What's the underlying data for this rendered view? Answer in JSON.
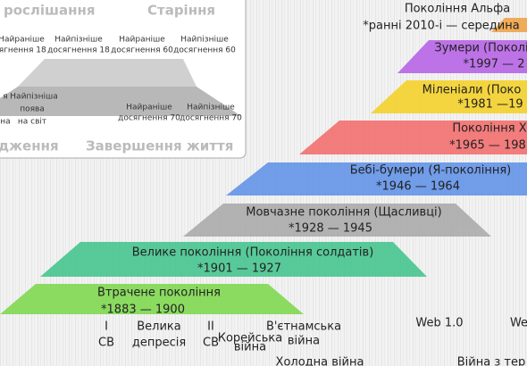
{
  "legend": {
    "stages": [
      "рослішання",
      "Старіння",
      "дження",
      "Завершення життя"
    ],
    "milestones_top": [
      [
        "Найраніше",
        "осягнення 18"
      ],
      [
        "Найпізніше",
        "досягнення 18"
      ],
      [
        "Найраніше",
        "досягнення 60"
      ],
      [
        "Найпізніше",
        "досягнення 60"
      ]
    ],
    "milestones_bottom": [
      [
        "Найпізніша",
        "поява",
        "на світ"
      ],
      [
        "Найраніше",
        "досягнення 70"
      ],
      [
        "Найпізніше",
        "досягнення 70"
      ]
    ],
    "fragments": [
      "я",
      "на"
    ]
  },
  "generations": [
    {
      "name": "Покоління Альфа",
      "years": "*ранні 2010-і — середина"
    },
    {
      "name": "Зумери (Поколі",
      "years": "*1997 — 2"
    },
    {
      "name": "Міленіали (Поко",
      "years": "*1981 —19"
    },
    {
      "name": "Покоління Х",
      "years": "*1965 — 198"
    },
    {
      "name": "Бебі-бумери (Я-покоління)",
      "years": "*1946 — 1964"
    },
    {
      "name": "Мовчазне покоління (Щасливці)",
      "years": "*1928 — 1945"
    },
    {
      "name": "Велике покоління (Покоління солдатів)",
      "years": "*1901 — 1927"
    },
    {
      "name": "Втрачене покоління",
      "years": "*1883 — 1900"
    }
  ],
  "events": [
    [
      "I",
      "СВ"
    ],
    [
      "Велика",
      "депресія"
    ],
    [
      "II",
      "СВ"
    ],
    [
      "Корейська",
      "війна"
    ],
    [
      "В'єтнамська",
      "війна"
    ],
    [
      "Холодна війна"
    ],
    [
      "Web 1.0"
    ],
    [
      "We"
    ],
    [
      "Війна з тер"
    ]
  ]
}
